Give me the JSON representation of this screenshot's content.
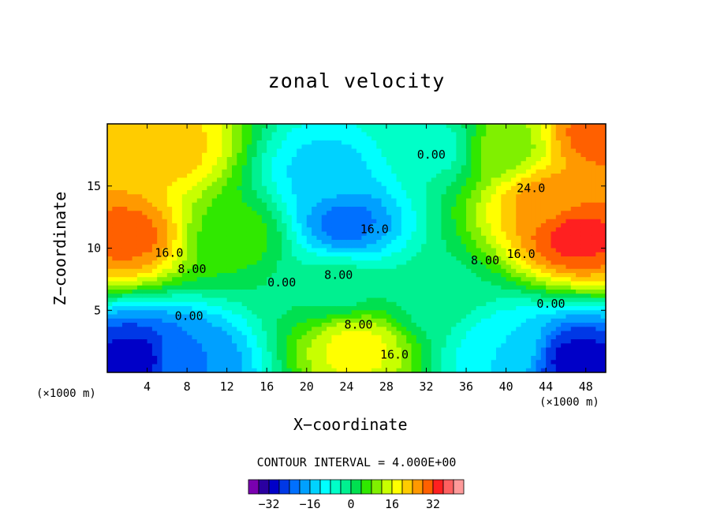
{
  "chart_data": {
    "type": "heatmap",
    "title": "zonal velocity",
    "xlabel": "X−coordinate",
    "ylabel": "Z−coordinate",
    "x_unit_label": "(×1000 m)",
    "xlim": [
      0,
      50
    ],
    "ylim": [
      0,
      20
    ],
    "x_ticks": [
      4,
      8,
      12,
      16,
      20,
      24,
      28,
      32,
      36,
      40,
      44,
      48
    ],
    "y_ticks": [
      5,
      10,
      15
    ],
    "contour_interval_label": "CONTOUR INTERVAL = 4.000E+00",
    "contour_labels": [
      {
        "text": "16.0",
        "x": 6.2,
        "y": 9.6
      },
      {
        "text": "8.00",
        "x": 8.5,
        "y": 8.3
      },
      {
        "text": "0.00",
        "x": 8.2,
        "y": 4.5
      },
      {
        "text": "0.00",
        "x": 17.5,
        "y": 7.2
      },
      {
        "text": "8.00",
        "x": 23.2,
        "y": 7.8
      },
      {
        "text": "16.0",
        "x": 26.8,
        "y": 11.5
      },
      {
        "text": "8.00",
        "x": 25.2,
        "y": 3.8
      },
      {
        "text": "16.0",
        "x": 28.8,
        "y": 1.4
      },
      {
        "text": "0.00",
        "x": 32.5,
        "y": 17.5
      },
      {
        "text": "8.00",
        "x": 37.9,
        "y": 9.0
      },
      {
        "text": "16.0",
        "x": 41.5,
        "y": 9.5
      },
      {
        "text": "24.0",
        "x": 42.5,
        "y": 14.8
      },
      {
        "text": "0.00",
        "x": 44.5,
        "y": 5.5
      }
    ],
    "features": [
      {
        "x": 2,
        "z": 11,
        "u": 30
      },
      {
        "x": 6,
        "z": 18,
        "u": 22
      },
      {
        "x": 3,
        "z": 1,
        "u": -30
      },
      {
        "x": 8,
        "z": 1,
        "u": -20
      },
      {
        "x": 13,
        "z": 11,
        "u": 6
      },
      {
        "x": 22,
        "z": 16,
        "u": -14
      },
      {
        "x": 24,
        "z": 12,
        "u": -22
      },
      {
        "x": 23,
        "z": 7,
        "u": -2
      },
      {
        "x": 25,
        "z": 2,
        "u": 18
      },
      {
        "x": 33,
        "z": 6,
        "u": -2
      },
      {
        "x": 33,
        "z": 18,
        "u": -6
      },
      {
        "x": 40,
        "z": 18,
        "u": 10
      },
      {
        "x": 47,
        "z": 11,
        "u": 34
      },
      {
        "x": 44,
        "z": 14,
        "u": 26
      },
      {
        "x": 47,
        "z": 1,
        "u": -30
      },
      {
        "x": 40,
        "z": 2,
        "u": -12
      },
      {
        "x": 49,
        "z": 19,
        "u": 30
      }
    ],
    "colorbar": {
      "ticks": [
        -32,
        -16,
        0,
        16,
        32
      ],
      "levels": [
        -36,
        -32,
        -28,
        -24,
        -20,
        -16,
        -12,
        -8,
        -4,
        0,
        4,
        8,
        12,
        16,
        20,
        24,
        28,
        32,
        36
      ],
      "colors": [
        "#7a00b0",
        "#2a00a0",
        "#0000c8",
        "#0038e6",
        "#0070ff",
        "#00a0ff",
        "#00d2ff",
        "#00ffff",
        "#00ffc8",
        "#00f090",
        "#00e050",
        "#30e800",
        "#80f000",
        "#c8ff00",
        "#ffff00",
        "#ffcc00",
        "#ff9900",
        "#ff6000",
        "#ff2020",
        "#ff6060",
        "#ff9a9a"
      ]
    }
  }
}
